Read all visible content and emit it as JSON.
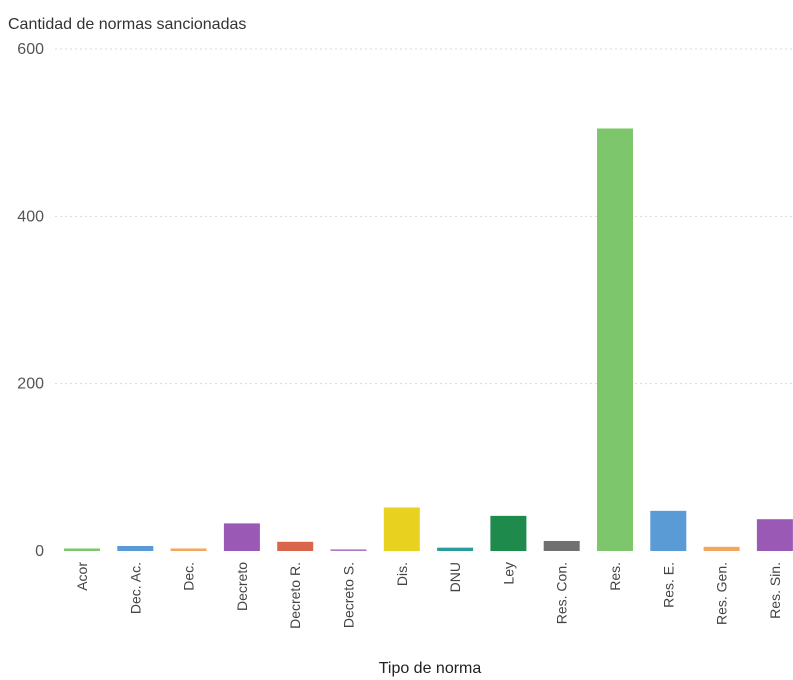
{
  "chart_data": {
    "type": "bar",
    "title": "",
    "ylabel": "Cantidad de normas sancionadas",
    "xlabel": "Tipo de norma",
    "ylim": [
      0,
      600
    ],
    "yticks": [
      0,
      200,
      400,
      600
    ],
    "grid": true,
    "legend": "none",
    "categories": [
      "Acor",
      "Dec. Ac.",
      "Dec.",
      "Decreto",
      "Decreto R.",
      "Decreto S.",
      "Dis.",
      "DNU",
      "Ley",
      "Res. Con.",
      "Res.",
      "Res. E.",
      "Res. Gen.",
      "Res. Sin."
    ],
    "values": [
      3,
      6,
      3,
      33,
      11,
      2,
      52,
      4,
      42,
      12,
      505,
      48,
      5,
      38
    ],
    "colors": [
      "#7dc66b",
      "#5a9bd5",
      "#f4a65a",
      "#9b59b6",
      "#d9664a",
      "#b07cc6",
      "#e8d21f",
      "#2a9d9a",
      "#1e8a4c",
      "#707070",
      "#7dc66b",
      "#5a9bd5",
      "#f4a65a",
      "#9b59b6"
    ]
  }
}
